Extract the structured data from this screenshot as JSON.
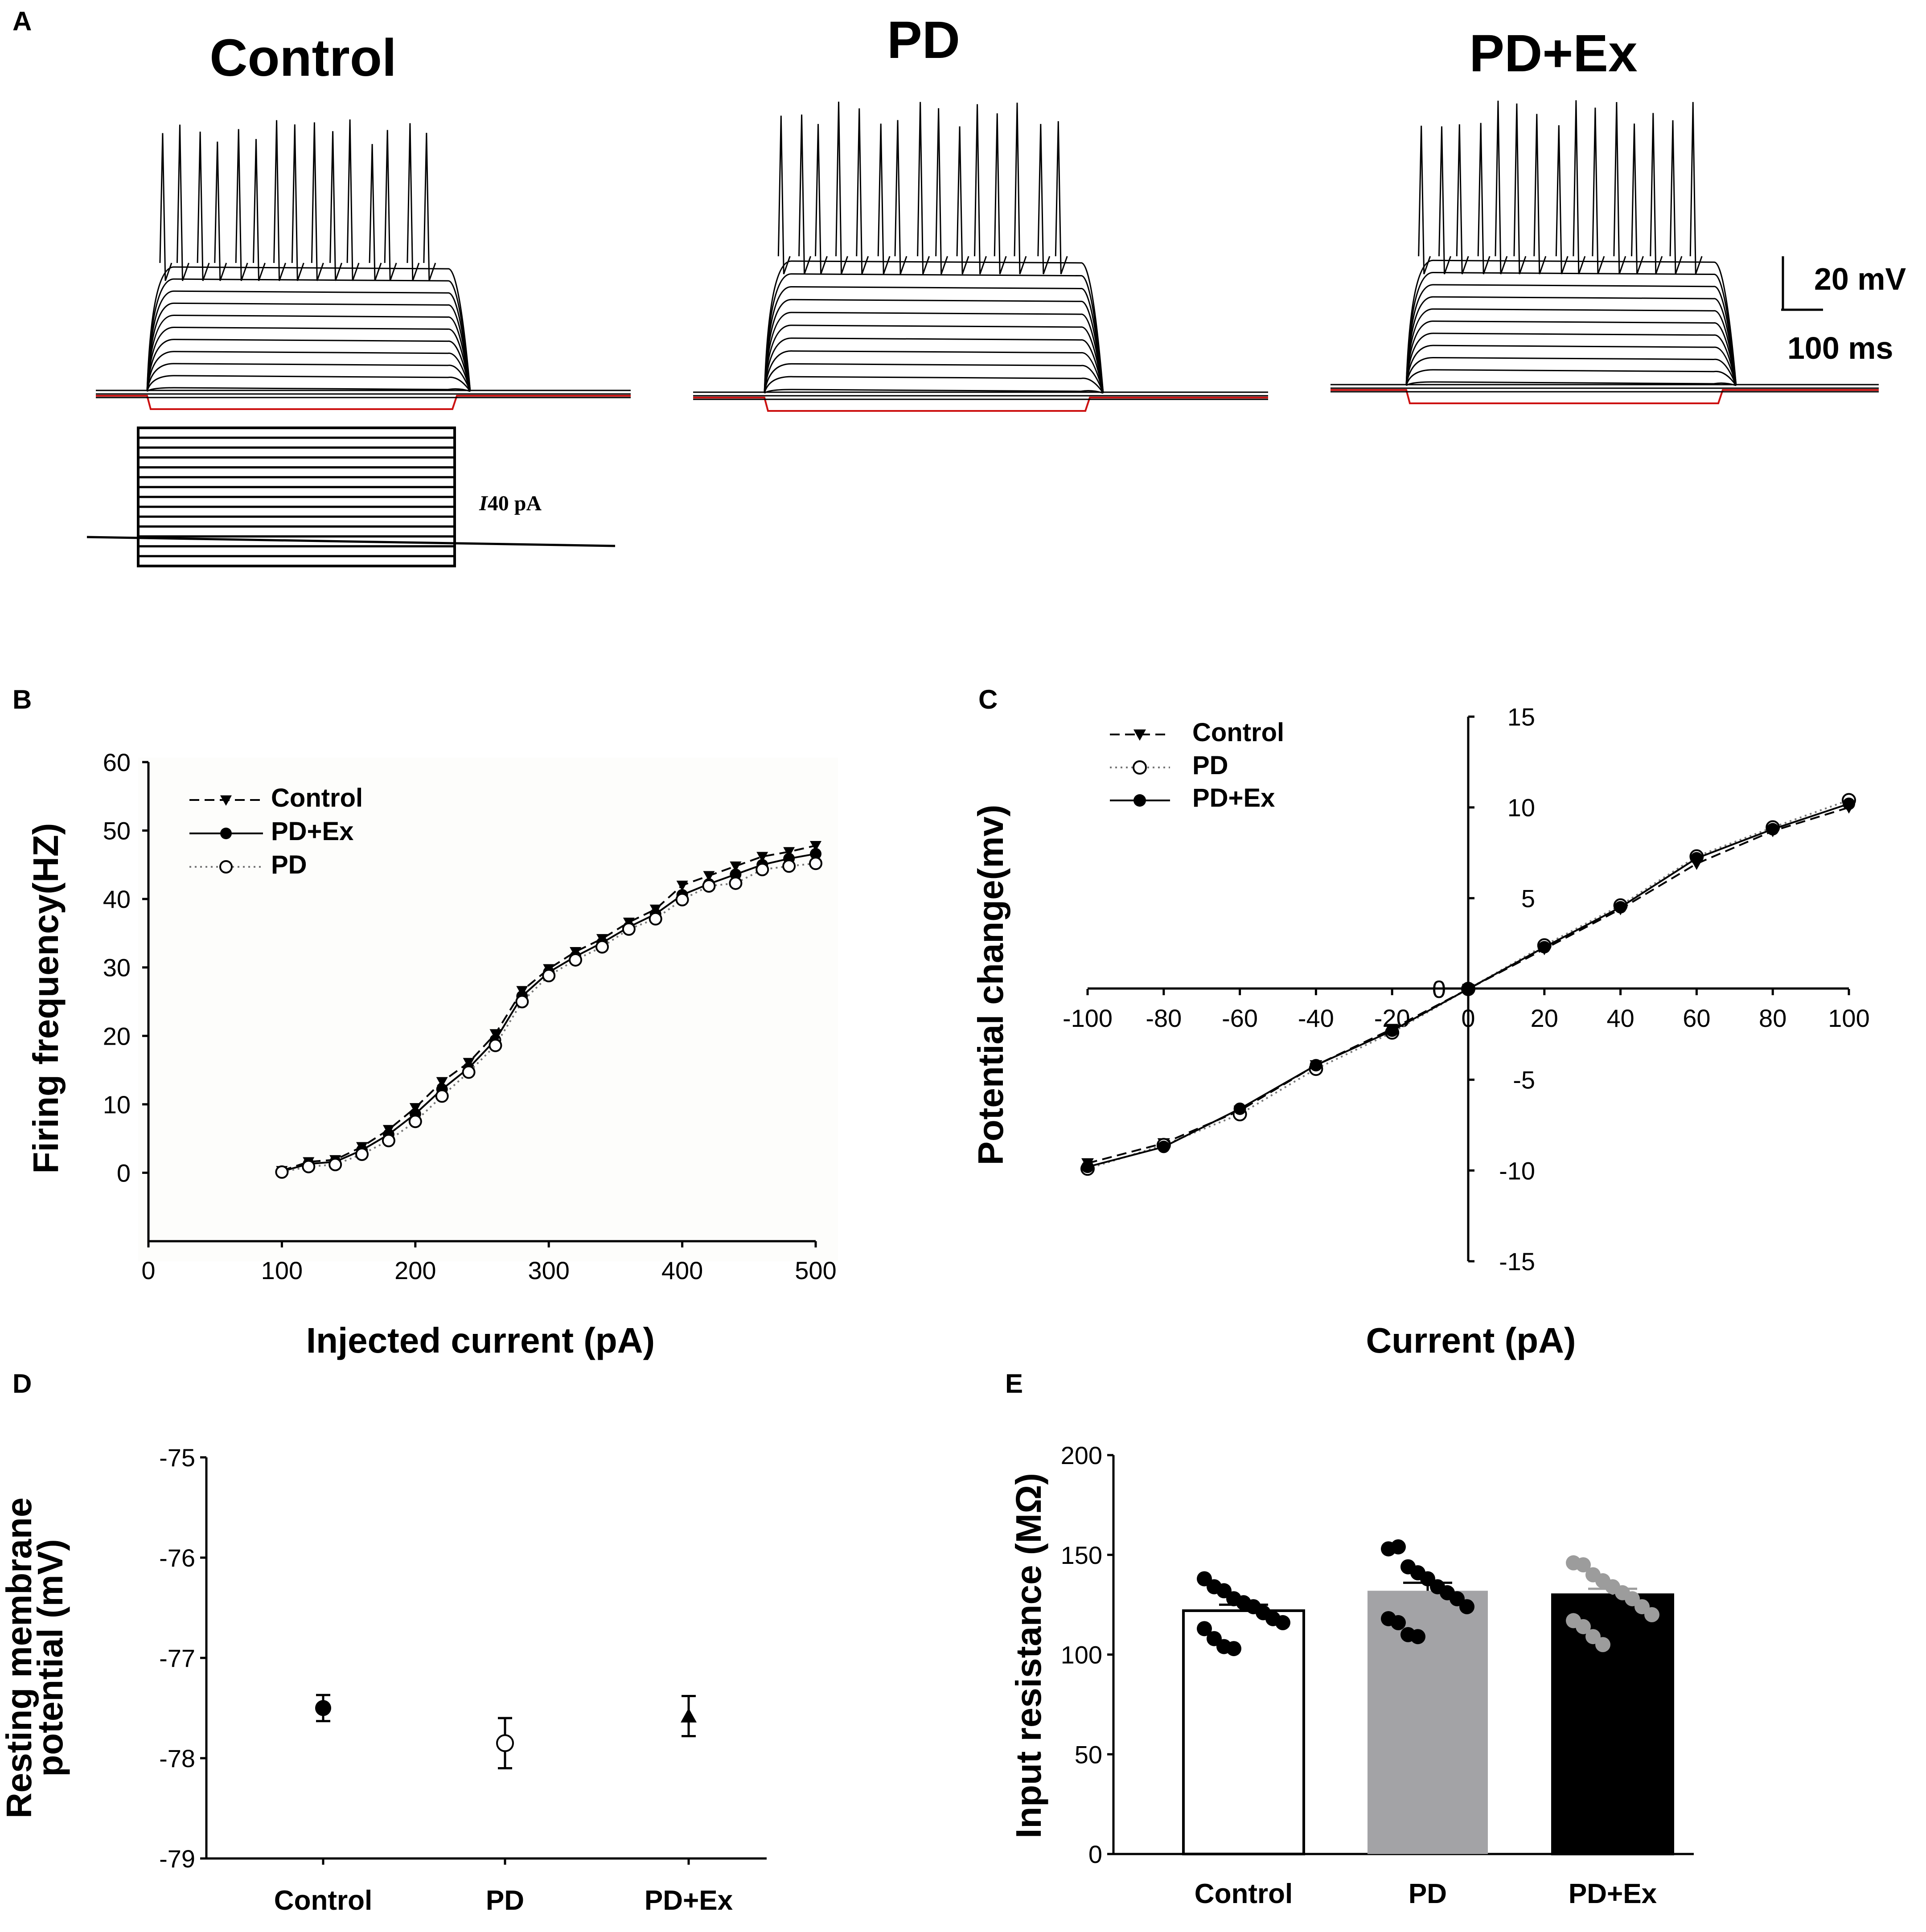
{
  "panel_letters": {
    "a": "A",
    "b": "B",
    "c": "C",
    "d": "D",
    "e": "E"
  },
  "colors": {
    "red_trace": "#cc1111",
    "pd_bar": "#a3a3a6",
    "pdex_bar": "#000000",
    "control_bar": "#ffffff",
    "gray_dot": "#9c9c9c"
  },
  "panel_a": {
    "groups": [
      "Control",
      "PD",
      "PD+Ex"
    ],
    "scale_bar": {
      "voltage": "20 mV",
      "time": "100 ms"
    },
    "stimulus_label": "40 pA",
    "stimulus_label_italic": "I"
  },
  "chart_data": [
    {
      "id": "B",
      "type": "line",
      "title": "",
      "xlabel": "Injected current (pA)",
      "ylabel": "Firing frequency(HZ)",
      "xlim": [
        0,
        500
      ],
      "ylim": [
        -10,
        60
      ],
      "x_ticks": [
        0,
        100,
        200,
        300,
        400,
        500
      ],
      "y_ticks": [
        0,
        10,
        20,
        30,
        40,
        50,
        60
      ],
      "x": [
        100,
        120,
        140,
        160,
        180,
        200,
        220,
        240,
        260,
        280,
        300,
        320,
        340,
        360,
        380,
        400,
        420,
        440,
        460,
        480,
        500
      ],
      "series": [
        {
          "name": "Control",
          "marker": "triangle-down",
          "line": "dashed",
          "values": [
            0.3,
            1.6,
            1.9,
            3.8,
            6.3,
            9.5,
            13.3,
            16.1,
            20.3,
            26.6,
            29.8,
            32.3,
            34.2,
            36.6,
            38.5,
            42.0,
            43.4,
            44.8,
            46.2,
            46.9,
            47.8
          ]
        },
        {
          "name": "PD+Ex",
          "marker": "filled-circle",
          "line": "solid",
          "values": [
            0.2,
            1.3,
            1.6,
            3.3,
            5.6,
            8.6,
            12.2,
            15.3,
            19.4,
            25.8,
            29.3,
            31.6,
            33.6,
            35.9,
            37.8,
            40.6,
            42.2,
            43.6,
            45.0,
            45.9,
            46.6
          ]
        },
        {
          "name": "PD",
          "marker": "open-circle",
          "line": "dotted",
          "values": [
            0.1,
            0.9,
            1.2,
            2.7,
            4.7,
            7.5,
            11.2,
            14.7,
            18.6,
            25.0,
            28.8,
            31.1,
            33.0,
            35.6,
            37.1,
            39.9,
            41.9,
            42.3,
            44.3,
            44.8,
            45.2
          ]
        }
      ]
    },
    {
      "id": "C",
      "type": "line",
      "title": "",
      "xlabel": "Current (pA)",
      "ylabel": "Potential change(mv)",
      "xlim": [
        -100,
        100
      ],
      "ylim": [
        -15,
        15
      ],
      "x_ticks": [
        -100,
        -80,
        -60,
        -40,
        -20,
        0,
        20,
        40,
        60,
        80,
        100
      ],
      "y_ticks": [
        -15,
        -10,
        -5,
        0,
        5,
        10,
        15
      ],
      "x": [
        -100,
        -80,
        -60,
        -40,
        -20,
        0,
        20,
        40,
        60,
        80,
        100
      ],
      "series": [
        {
          "name": "Control",
          "marker": "triangle-down",
          "line": "dashed",
          "values": [
            -9.6,
            -8.5,
            -6.7,
            -4.2,
            -2.2,
            0,
            2.2,
            4.4,
            6.9,
            8.7,
            10.0
          ]
        },
        {
          "name": "PD",
          "marker": "open-circle",
          "line": "dotted",
          "values": [
            -9.9,
            -8.6,
            -6.9,
            -4.4,
            -2.4,
            0,
            2.4,
            4.6,
            7.3,
            8.9,
            10.4
          ]
        },
        {
          "name": "PD+Ex",
          "marker": "filled-circle",
          "line": "solid",
          "values": [
            -9.8,
            -8.7,
            -6.6,
            -4.2,
            -2.3,
            0,
            2.3,
            4.5,
            7.2,
            8.8,
            10.2
          ]
        }
      ]
    },
    {
      "id": "D",
      "type": "scatter",
      "title": "",
      "xlabel": "",
      "ylabel_lines": [
        "Resting membrane",
        "potential (mV)"
      ],
      "ylim": [
        -79,
        -75
      ],
      "y_ticks": [
        -79,
        -78,
        -77,
        -76,
        -75
      ],
      "categories": [
        "Control",
        "PD",
        "PD+Ex"
      ],
      "means": [
        -77.5,
        -77.85,
        -77.58
      ],
      "sems": [
        0.13,
        0.25,
        0.2
      ],
      "markers": [
        "filled-circle",
        "open-circle",
        "filled-triangle"
      ]
    },
    {
      "id": "E",
      "type": "bar",
      "title": "",
      "xlabel": "",
      "ylabel": "Input resistance (MΩ)",
      "ylim": [
        0,
        200
      ],
      "y_ticks": [
        0,
        50,
        100,
        150,
        200
      ],
      "categories": [
        "Control",
        "PD",
        "PD+Ex"
      ],
      "values": [
        122,
        132,
        130
      ],
      "sems": [
        3,
        4,
        3
      ],
      "points": [
        [
          138,
          134,
          132,
          128,
          126,
          124,
          121,
          118,
          116,
          113,
          108,
          104,
          103
        ],
        [
          153,
          154,
          144,
          141,
          138,
          134,
          131,
          128,
          124,
          118,
          116,
          110,
          109
        ],
        [
          146,
          145,
          140,
          137,
          134,
          131,
          128,
          124,
          120,
          117,
          114,
          109,
          105
        ]
      ]
    }
  ]
}
